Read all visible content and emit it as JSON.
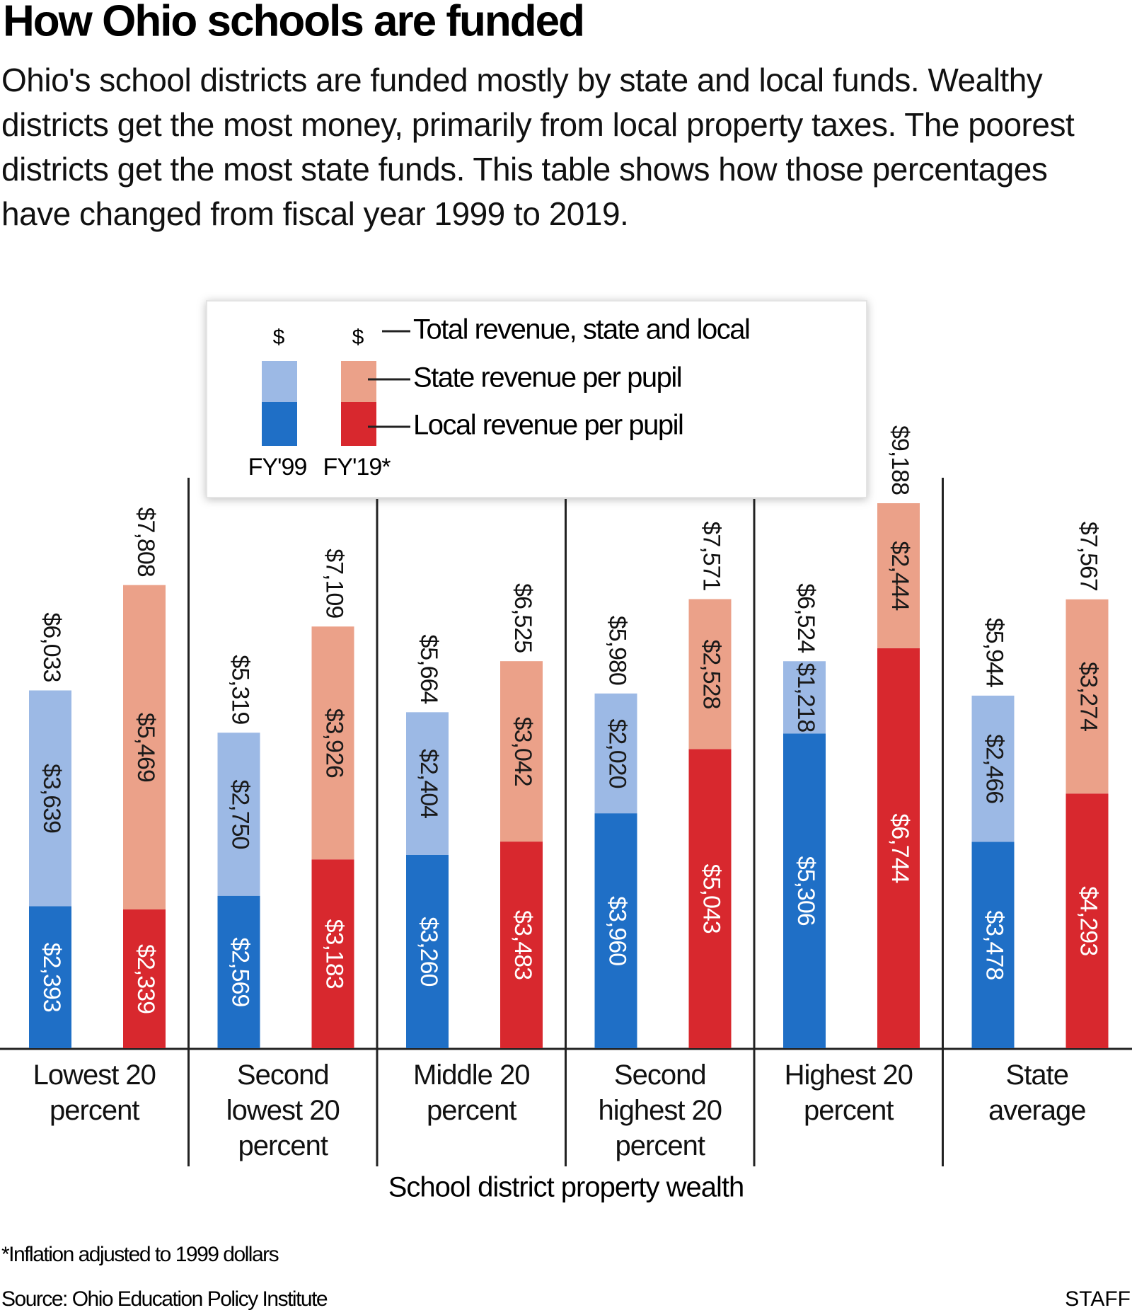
{
  "chart_data": {
    "type": "grouped-stacked-bar",
    "title": "How Ohio schools are funded",
    "subtitle": "Ohio's school districts are funded mostly by state and local funds. Wealthy districts get the most money, primarily from local property taxes. The poorest districts get the most state funds. This table shows how those percentages have changed from fiscal year 1999 to 2019.",
    "x_label": "School district property wealth",
    "footnote": "*Inflation adjusted to 1999 dollars",
    "source": "Source: Ohio Education Policy Institute",
    "credit": "STAFF",
    "legend": {
      "symbol": "$",
      "total": "Total revenue, state and local",
      "state": "State revenue per pupil",
      "local": "Local revenue per pupil"
    },
    "categories": [
      "Lowest 20 percent",
      "Second lowest 20 percent",
      "Middle 20 percent",
      "Second highest 20 percent",
      "Highest 20 percent",
      "State average"
    ],
    "series": [
      {
        "name": "FY'99",
        "local_color": "#1f6fc6",
        "state_color": "#9cb9e5",
        "local": [
          2393,
          2569,
          3260,
          3960,
          5306,
          3478
        ],
        "local_labels": [
          "$2,393",
          "$2,569",
          "$3,260",
          "$3,960",
          "$5,306",
          "$3,478"
        ],
        "state": [
          3639,
          2750,
          2404,
          2020,
          1218,
          2466
        ],
        "state_labels": [
          "$3,639",
          "$2,750",
          "$2,404",
          "$2,020",
          "$1,218",
          "$2,466"
        ],
        "totals": [
          6033,
          5319,
          5664,
          5980,
          6524,
          5944
        ],
        "total_labels": [
          "$6,033",
          "$5,319",
          "$5,664",
          "$5,980",
          "$6,524",
          "$5,944"
        ]
      },
      {
        "name": "FY'19*",
        "local_color": "#d8282e",
        "state_color": "#eba189",
        "local": [
          2339,
          3183,
          3483,
          5043,
          6744,
          4293
        ],
        "local_labels": [
          "$2,339",
          "$3,183",
          "$3,483",
          "$5,043",
          "$6,744",
          "$4,293"
        ],
        "state": [
          5469,
          3926,
          3042,
          2528,
          2444,
          3274
        ],
        "state_labels": [
          "$5,469",
          "$3,926",
          "$3,042",
          "$2,528",
          "$2,444",
          "$3,274"
        ],
        "totals": [
          7808,
          7109,
          6525,
          7571,
          9188,
          7567
        ],
        "total_labels": [
          "$7,808",
          "$7,109",
          "$6,525",
          "$7,571",
          "$9,188",
          "$7,567"
        ]
      }
    ]
  }
}
